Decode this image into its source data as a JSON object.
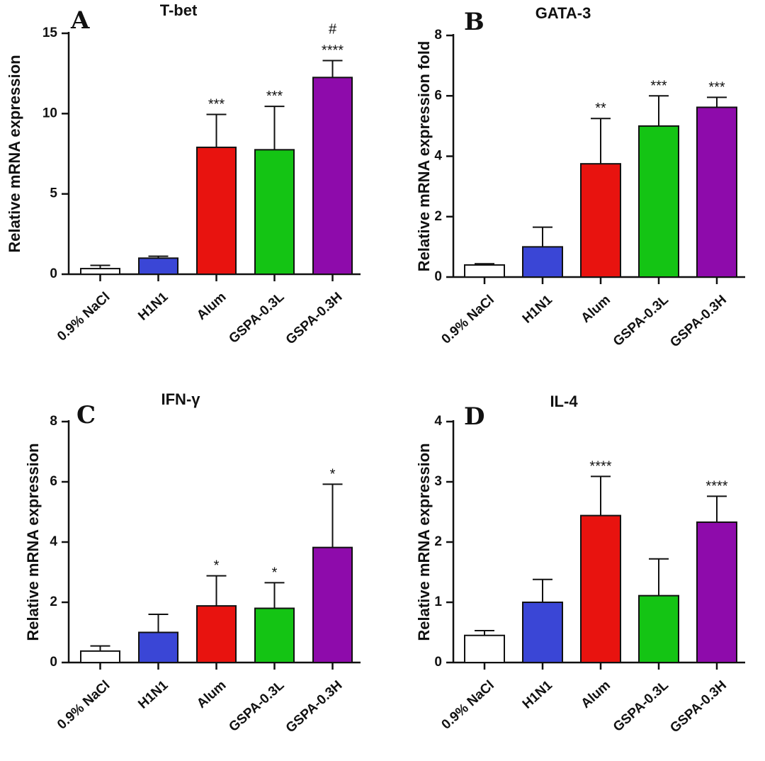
{
  "colors": {
    "0.9% NaCl": "#ffffff",
    "H1N1": "#3a46d6",
    "Alum": "#e8130f",
    "GSPA-0.3L": "#14c414",
    "GSPA-0.3H": "#8e0bab"
  },
  "chart_data": [
    {
      "type": "bar",
      "panel": "A",
      "title": "T-bet",
      "ylabel": "Relative mRNA expression",
      "xlabel": "",
      "ylim": [
        0,
        15
      ],
      "yticks": [
        0,
        5,
        10,
        15
      ],
      "categories": [
        "0.9% NaCl",
        "H1N1",
        "Alum",
        "GSPA-0.3L",
        "GSPA-0.3H"
      ],
      "values": [
        0.35,
        1.0,
        7.9,
        7.75,
        12.25
      ],
      "errors": [
        0.2,
        0.12,
        2.05,
        2.7,
        1.05
      ],
      "significance": [
        [
          "",
          ""
        ],
        [
          ""
        ],
        [
          "***"
        ],
        [
          "***"
        ],
        [
          "****",
          "#"
        ]
      ]
    },
    {
      "type": "bar",
      "panel": "B",
      "title": "GATA-3",
      "ylabel": "Relative mRNA expression fold",
      "xlabel": "",
      "ylim": [
        0,
        8
      ],
      "yticks": [
        0,
        2,
        4,
        6,
        8
      ],
      "categories": [
        "0.9% NaCl",
        "H1N1",
        "Alum",
        "GSPA-0.3L",
        "GSPA-0.3H"
      ],
      "values": [
        0.4,
        1.0,
        3.75,
        5.0,
        5.62
      ],
      "errors": [
        0.04,
        0.65,
        1.5,
        1.0,
        0.33
      ],
      "significance": [
        [
          ""
        ],
        [
          ""
        ],
        [
          "**"
        ],
        [
          "***"
        ],
        [
          "***"
        ]
      ]
    },
    {
      "type": "bar",
      "panel": "C",
      "title": "IFN-γ",
      "ylabel": "Relative mRNA expression",
      "xlabel": "",
      "ylim": [
        0,
        8
      ],
      "yticks": [
        0,
        2,
        4,
        6,
        8
      ],
      "categories": [
        "0.9% NaCl",
        "H1N1",
        "Alum",
        "GSPA-0.3L",
        "GSPA-0.3H"
      ],
      "values": [
        0.38,
        1.0,
        1.88,
        1.8,
        3.82
      ],
      "errors": [
        0.17,
        0.6,
        1.0,
        0.85,
        2.1
      ],
      "significance": [
        [
          ""
        ],
        [
          ""
        ],
        [
          "*"
        ],
        [
          "*"
        ],
        [
          "*"
        ]
      ]
    },
    {
      "type": "bar",
      "panel": "D",
      "title": "IL-4",
      "ylabel": "Relative mRNA expression",
      "xlabel": "",
      "ylim": [
        0,
        4
      ],
      "yticks": [
        0,
        1,
        2,
        3,
        4
      ],
      "categories": [
        "0.9% NaCl",
        "H1N1",
        "Alum",
        "GSPA-0.3L",
        "GSPA-0.3H"
      ],
      "values": [
        0.45,
        1.0,
        2.44,
        1.11,
        2.33
      ],
      "errors": [
        0.08,
        0.38,
        0.65,
        0.61,
        0.43
      ],
      "significance": [
        [
          ""
        ],
        [
          ""
        ],
        [
          "****"
        ],
        [
          ""
        ],
        [
          "****"
        ]
      ]
    }
  ]
}
